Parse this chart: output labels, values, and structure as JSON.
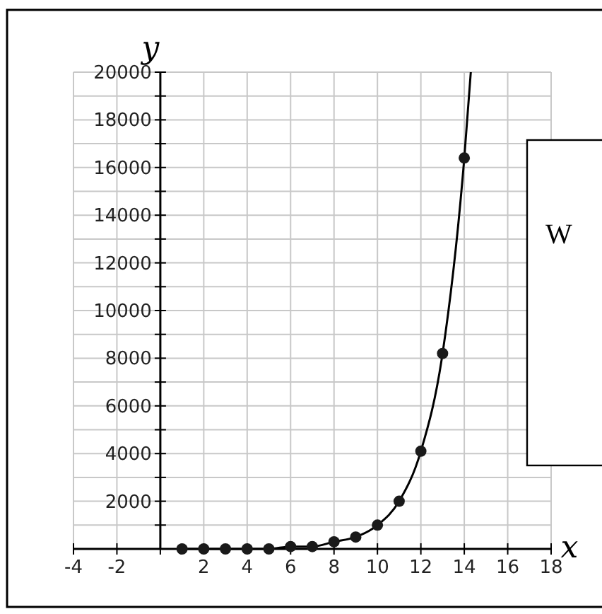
{
  "chart_data": {
    "type": "scatter",
    "xlabel": "x",
    "ylabel": "y",
    "xlim": [
      -4,
      18
    ],
    "xticks": [
      -4,
      -2,
      {
        "value": 0,
        "label": null
      },
      2,
      4,
      6,
      8,
      10,
      12,
      14,
      16,
      18
    ],
    "ylim": [
      0,
      20000
    ],
    "yticks": [
      {
        "value": 1000,
        "label": null
      },
      2000,
      {
        "value": 3000,
        "label": null
      },
      4000,
      {
        "value": 5000,
        "label": null
      },
      6000,
      {
        "value": 7000,
        "label": null
      },
      8000,
      {
        "value": 9000,
        "label": null
      },
      10000,
      {
        "value": 11000,
        "label": null
      },
      12000,
      {
        "value": 13000,
        "label": null
      },
      14000,
      {
        "value": 15000,
        "label": null
      },
      16000,
      {
        "value": 17000,
        "label": null
      },
      18000,
      {
        "value": 19000,
        "label": null
      },
      20000
    ],
    "grid": true,
    "annotations": [
      "W"
    ],
    "series": [
      {
        "type": "line",
        "color": "#000000",
        "line_style": "solid",
        "x": [
          1,
          2,
          3,
          4,
          5,
          6,
          7,
          8,
          9,
          10,
          11,
          12,
          13,
          14,
          14.3
        ],
        "values": [
          0,
          0,
          0,
          0,
          0,
          100,
          100,
          300,
          500,
          1000,
          2000,
          4100,
          8200,
          16400,
          20000
        ]
      },
      {
        "type": "scatter",
        "color": "#1a1a1a",
        "marker": "circle",
        "x": [
          1,
          2,
          3,
          4,
          5,
          6,
          7,
          8,
          9,
          10,
          11,
          12,
          13,
          14
        ],
        "values": [
          0,
          0,
          0,
          0,
          0,
          100,
          100,
          300,
          500,
          1000,
          2000,
          4100,
          8200,
          16400
        ]
      }
    ]
  }
}
